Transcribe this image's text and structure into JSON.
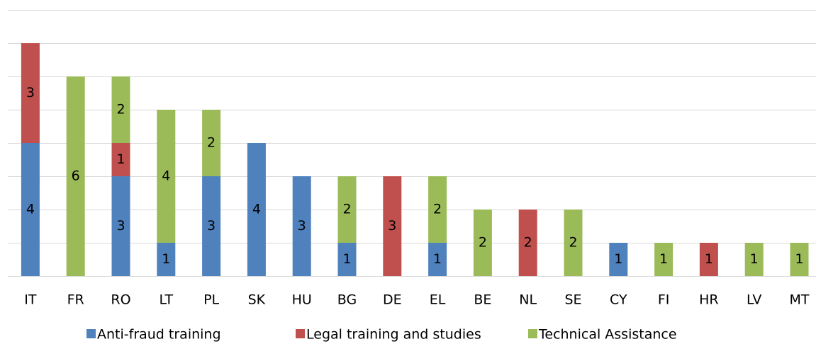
{
  "chart_data": {
    "type": "bar",
    "stacked": true,
    "categories": [
      "IT",
      "FR",
      "RO",
      "LT",
      "PL",
      "SK",
      "HU",
      "BG",
      "DE",
      "EL",
      "BE",
      "NL",
      "SE",
      "CY",
      "FI",
      "HR",
      "LV",
      "MT"
    ],
    "series": [
      {
        "name": "Anti-fraud training",
        "color": "#4f81bd",
        "values": [
          4,
          null,
          3,
          1,
          3,
          4,
          3,
          1,
          null,
          1,
          null,
          null,
          null,
          1,
          null,
          null,
          null,
          null
        ]
      },
      {
        "name": "Legal training and studies",
        "color": "#c0504d",
        "values": [
          3,
          null,
          1,
          null,
          null,
          null,
          null,
          null,
          3,
          null,
          null,
          2,
          null,
          null,
          null,
          1,
          null,
          null
        ]
      },
      {
        "name": "Technical Assistance",
        "color": "#9bbb59",
        "values": [
          null,
          6,
          2,
          4,
          2,
          null,
          null,
          2,
          null,
          2,
          2,
          null,
          2,
          null,
          1,
          null,
          1,
          1
        ]
      }
    ],
    "ylim": [
      0,
      8
    ],
    "yticks": [
      0,
      1,
      2,
      3,
      4,
      5,
      6,
      7,
      8
    ],
    "grid": true,
    "legend": "bottom"
  }
}
